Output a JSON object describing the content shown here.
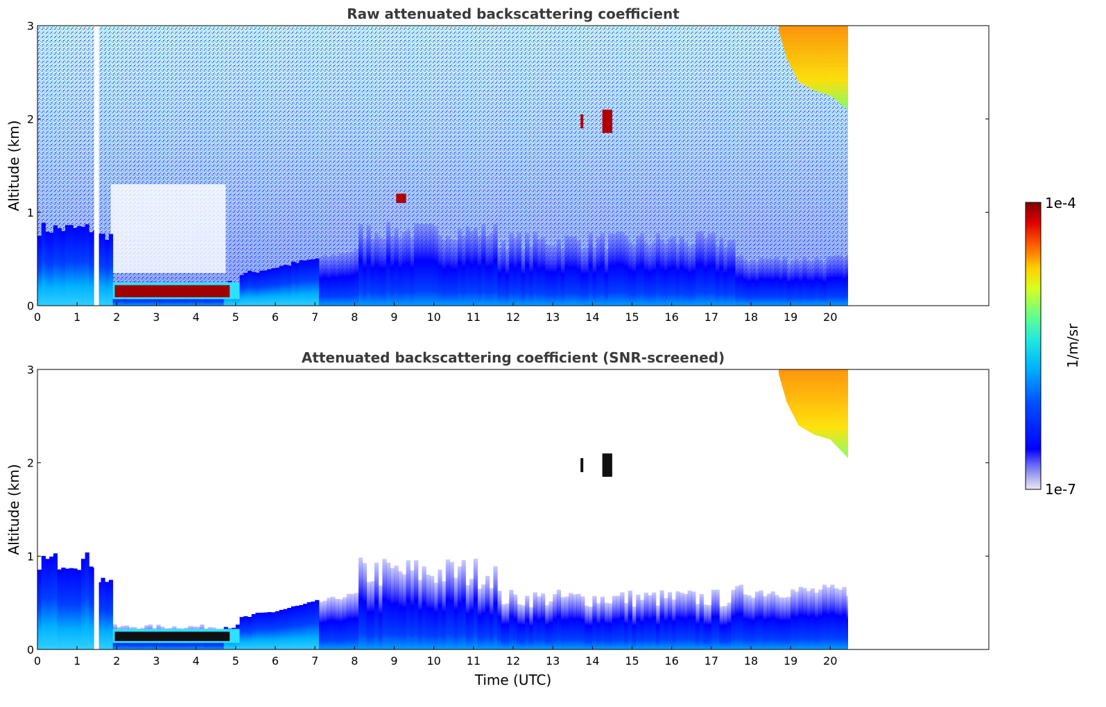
{
  "chart_data": [
    {
      "type": "heatmap",
      "title": "Raw attenuated backscattering coefficient",
      "xlabel": "",
      "ylabel": "Altitude (km)",
      "xlim": [
        0,
        24
      ],
      "ylim": [
        0,
        3
      ],
      "xticks": [
        "0",
        "1",
        "2",
        "3",
        "4",
        "5",
        "6",
        "7",
        "8",
        "9",
        "10",
        "11",
        "12",
        "13",
        "14",
        "15",
        "16",
        "17",
        "18",
        "19",
        "20"
      ],
      "yticks": [
        "0",
        "1",
        "2",
        "3"
      ],
      "data_end_x": 20.45,
      "gap_x": [
        1.43,
        1.55
      ],
      "colorscale": "jet",
      "features": [
        {
          "label": "boundary layer (high backscatter)",
          "x": [
            0,
            20.45
          ],
          "y": [
            0,
            0.4
          ]
        },
        {
          "label": "fog / low cloud layer",
          "x": [
            1.9,
            5.1
          ],
          "y": [
            0.07,
            0.25
          ],
          "level": "max"
        },
        {
          "label": "elevated cloud",
          "x": [
            13.7,
            14.5
          ],
          "y": [
            1.85,
            2.15
          ],
          "level": "max"
        },
        {
          "label": "elevated cloud",
          "x": [
            9.1,
            9.3
          ],
          "y": [
            1.1,
            1.25
          ],
          "level": "max"
        },
        {
          "label": "high cloud / precipitation",
          "x": [
            18.7,
            20.45
          ],
          "y": [
            2.1,
            3.0
          ],
          "level": "high"
        }
      ]
    },
    {
      "type": "heatmap",
      "title": "Attenuated backscattering coefficient (SNR-screened)",
      "xlabel": "Time (UTC)",
      "ylabel": "Altitude (km)",
      "xlim": [
        0,
        24
      ],
      "ylim": [
        0,
        3
      ],
      "xticks": [
        "0",
        "1",
        "2",
        "3",
        "4",
        "5",
        "6",
        "7",
        "8",
        "9",
        "10",
        "11",
        "12",
        "13",
        "14",
        "15",
        "16",
        "17",
        "18",
        "19",
        "20"
      ],
      "yticks": [
        "0",
        "1",
        "2",
        "3"
      ],
      "data_end_x": 20.45,
      "gap_x": [
        1.43,
        1.55
      ],
      "colorscale": "jet",
      "features": [
        {
          "label": "boundary layer (screened)",
          "x": [
            0,
            20.45
          ],
          "y": [
            0,
            0.9
          ]
        },
        {
          "label": "fog / low cloud layer (saturated)",
          "x": [
            1.9,
            5.1
          ],
          "y": [
            0.07,
            0.22
          ],
          "level": "saturated"
        },
        {
          "label": "elevated cloud (saturated)",
          "x": [
            13.7,
            14.5
          ],
          "y": [
            1.85,
            2.15
          ],
          "level": "saturated"
        },
        {
          "label": "high cloud / precipitation",
          "x": [
            18.7,
            20.45
          ],
          "y": [
            2.05,
            3.0
          ],
          "level": "high"
        }
      ]
    }
  ],
  "colorbar": {
    "label": "1/m/sr",
    "max_label": "1e-4",
    "min_label": "1e-7",
    "scale": "log",
    "colors": [
      "#e8e8f8",
      "#b8b8f0",
      "#8080f0",
      "#0000ff",
      "#0060ff",
      "#00c0ff",
      "#40ffc0",
      "#c0ff40",
      "#ffd000",
      "#ff6000",
      "#e00000",
      "#800000"
    ]
  }
}
